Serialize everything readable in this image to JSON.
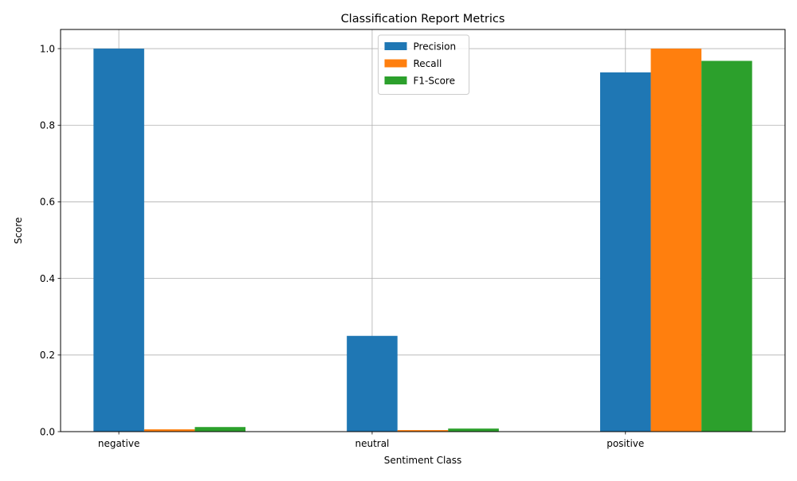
{
  "chart_data": {
    "type": "bar",
    "title": "Classification Report Metrics",
    "xlabel": "Sentiment Class",
    "ylabel": "Score",
    "categories": [
      "negative",
      "neutral",
      "positive"
    ],
    "series": [
      {
        "name": "Precision",
        "color": "#1f77b4",
        "values": [
          1.0,
          0.25,
          0.938
        ]
      },
      {
        "name": "Recall",
        "color": "#ff7f0e",
        "values": [
          0.006,
          0.004,
          1.0
        ]
      },
      {
        "name": "F1-Score",
        "color": "#2ca02c",
        "values": [
          0.012,
          0.008,
          0.968
        ]
      }
    ],
    "ylim": [
      0,
      1.05
    ],
    "yticks": [
      "0.0",
      "0.2",
      "0.4",
      "0.6",
      "0.8",
      "1.0"
    ],
    "grid": true,
    "legend_position": "upper center"
  }
}
